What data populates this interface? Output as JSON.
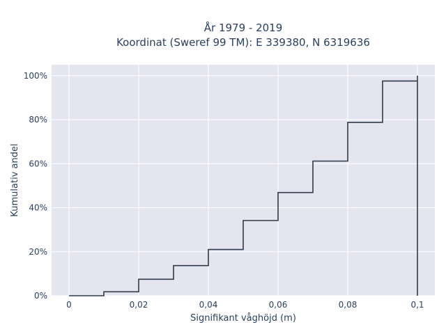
{
  "chart_data": {
    "type": "line",
    "line_shape": "step",
    "title_line1": "År 1979 - 2019",
    "title_line2": "Koordinat (Sweref 99 TM): E 339380, N 6319636",
    "xlabel": "Signifikant våghöjd (m)",
    "ylabel": "Kumulativ andel",
    "xlim": [
      -0.005,
      0.105
    ],
    "ylim": [
      0,
      1.05
    ],
    "x_ticks": [
      0,
      0.02,
      0.04,
      0.06,
      0.08,
      0.1
    ],
    "x_tick_labels": [
      "0",
      "0,02",
      "0,04",
      "0,06",
      "0,08",
      "0,1"
    ],
    "y_ticks": [
      0,
      0.2,
      0.4,
      0.6,
      0.8,
      1.0
    ],
    "y_tick_labels": [
      "0%",
      "20%",
      "40%",
      "60%",
      "80%",
      "100%"
    ],
    "x": [
      0,
      0.01,
      0.02,
      0.03,
      0.04,
      0.05,
      0.06,
      0.07,
      0.08,
      0.09,
      0.1
    ],
    "y": [
      0.0,
      0.018,
      0.075,
      0.137,
      0.21,
      0.342,
      0.469,
      0.612,
      0.788,
      0.976,
      1.0
    ],
    "background_color": "#e5e5f0",
    "line_color": "#2f3a4a",
    "grid": true
  }
}
